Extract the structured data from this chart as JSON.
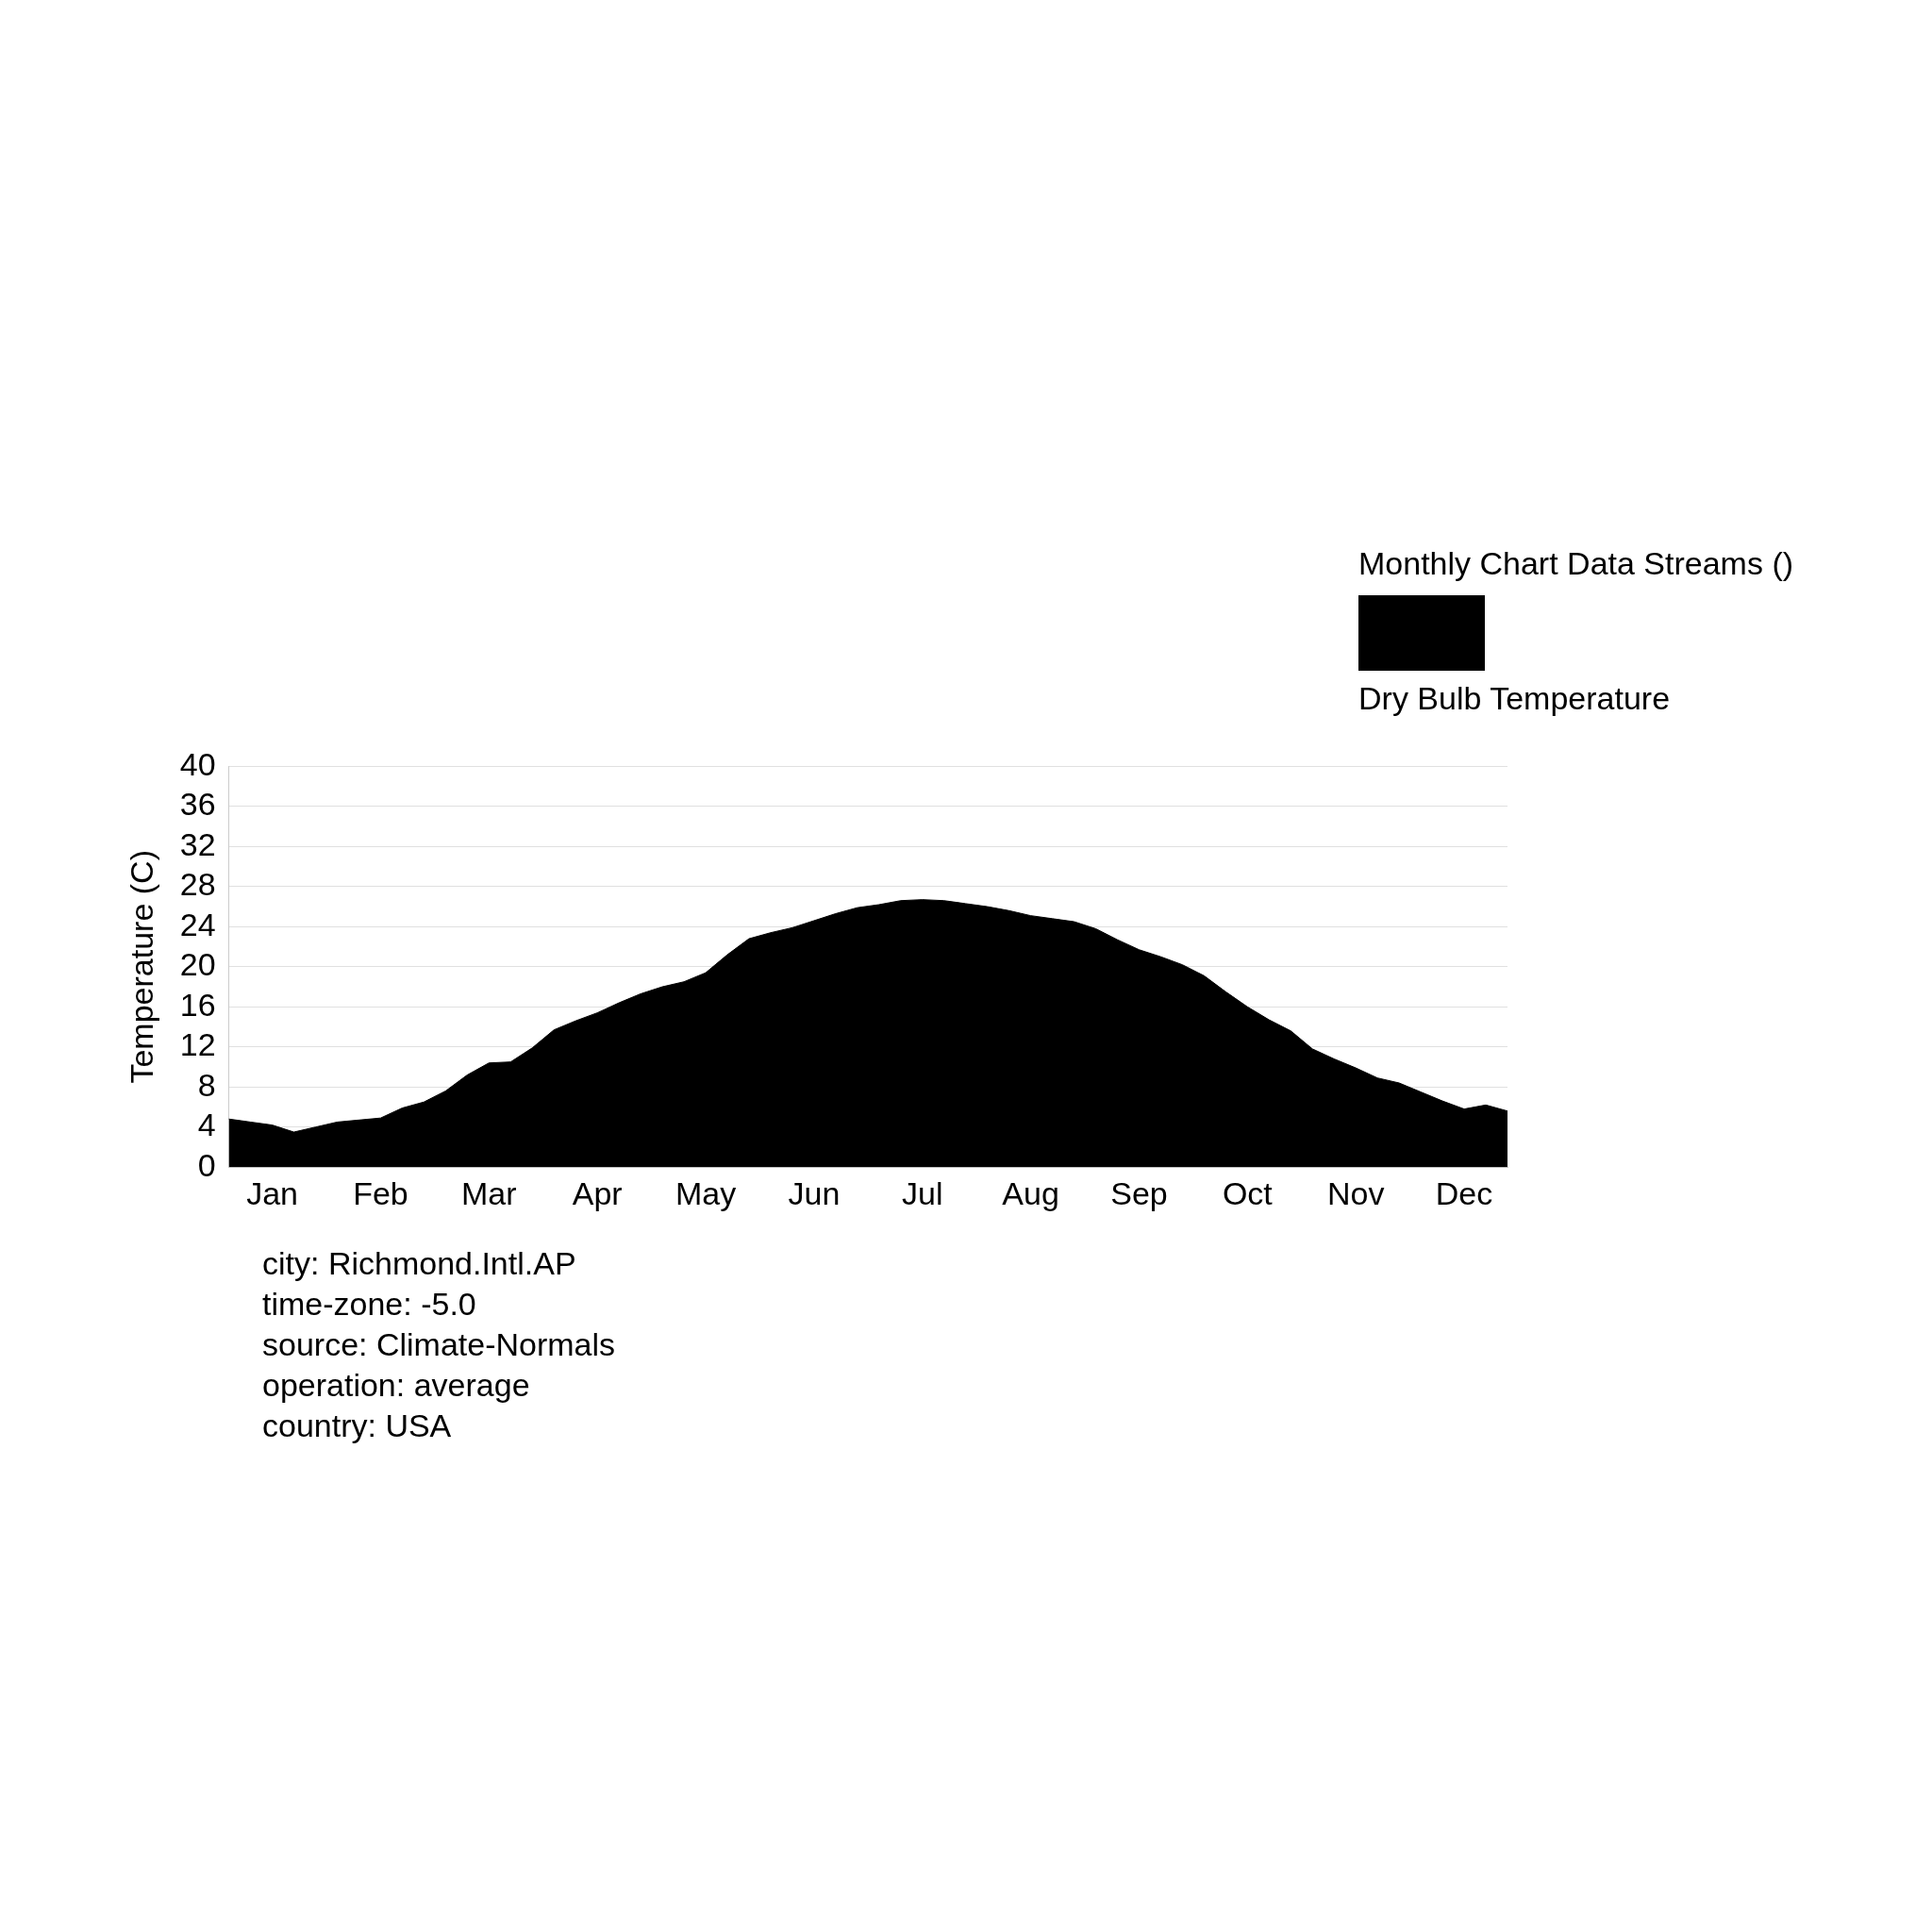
{
  "chart_data": {
    "type": "area",
    "ylabel": "Temperature (C)",
    "legend_title": "Monthly Chart Data Streams ()",
    "legend": "top right",
    "grid": "y",
    "categories": [
      null,
      null,
      "Jan",
      null,
      null,
      null,
      null,
      "Feb",
      null,
      null,
      null,
      null,
      "Mar",
      null,
      null,
      null,
      null,
      "Apr",
      null,
      null,
      null,
      null,
      "May",
      null,
      null,
      null,
      null,
      "Jun",
      null,
      null,
      null,
      null,
      "Jul",
      null,
      null,
      null,
      null,
      "Aug",
      null,
      null,
      null,
      null,
      "Sep",
      null,
      null,
      null,
      null,
      "Oct",
      null,
      null,
      null,
      null,
      "Nov",
      null,
      null,
      null,
      null,
      "Dec",
      null,
      null
    ],
    "ylim": [
      0,
      40
    ],
    "yticks": [
      0,
      4,
      8,
      12,
      16,
      20,
      24,
      28,
      32,
      36,
      40
    ],
    "series": [
      {
        "name": "Dry Bulb Temperature",
        "color": "#000000",
        "values": [
          4.8,
          4.5,
          4.2,
          3.5,
          4.0,
          4.5,
          4.7,
          4.9,
          5.9,
          6.5,
          7.6,
          9.2,
          10.4,
          10.5,
          11.9,
          13.7,
          14.6,
          15.4,
          16.4,
          17.3,
          18.0,
          18.5,
          19.4,
          21.2,
          22.8,
          23.4,
          23.9,
          24.6,
          25.3,
          25.9,
          26.2,
          26.6,
          26.7,
          26.6,
          26.3,
          26.0,
          25.6,
          25.1,
          24.8,
          24.5,
          23.8,
          22.7,
          21.7,
          21.0,
          20.2,
          19.1,
          17.5,
          16.0,
          14.7,
          13.6,
          11.8,
          10.8,
          9.9,
          8.9,
          8.4,
          7.5,
          6.6,
          5.8,
          6.2,
          5.6
        ]
      }
    ],
    "annotations": [
      "city: Richmond.Intl.AP",
      "time-zone: -5.0",
      "source: Climate-Normals",
      "operation: average",
      "country: USA"
    ]
  }
}
